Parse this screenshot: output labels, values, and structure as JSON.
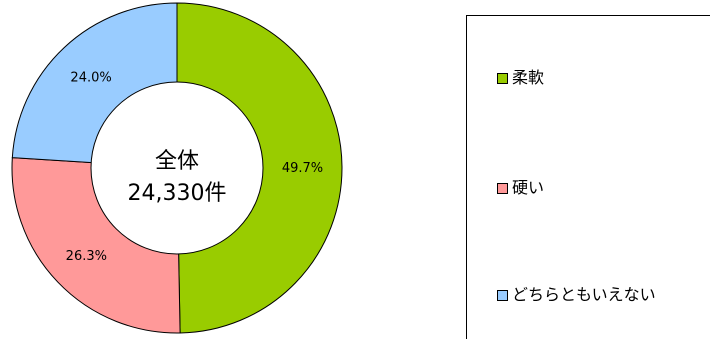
{
  "chart_data": {
    "type": "pie",
    "variant": "donut",
    "center_text": {
      "line1": "全体",
      "line2": "24,330件"
    },
    "slices": [
      {
        "label": "柔軟",
        "value": 49.7,
        "label_text": "49.7%",
        "color": "#99CC00"
      },
      {
        "label": "硬い",
        "value": 26.3,
        "label_text": "26.3%",
        "color": "#FF9999"
      },
      {
        "label": "どちらともいえない",
        "value": 24.0,
        "label_text": "24.0%",
        "color": "#99CCFF"
      }
    ],
    "legend_placement": "right"
  }
}
